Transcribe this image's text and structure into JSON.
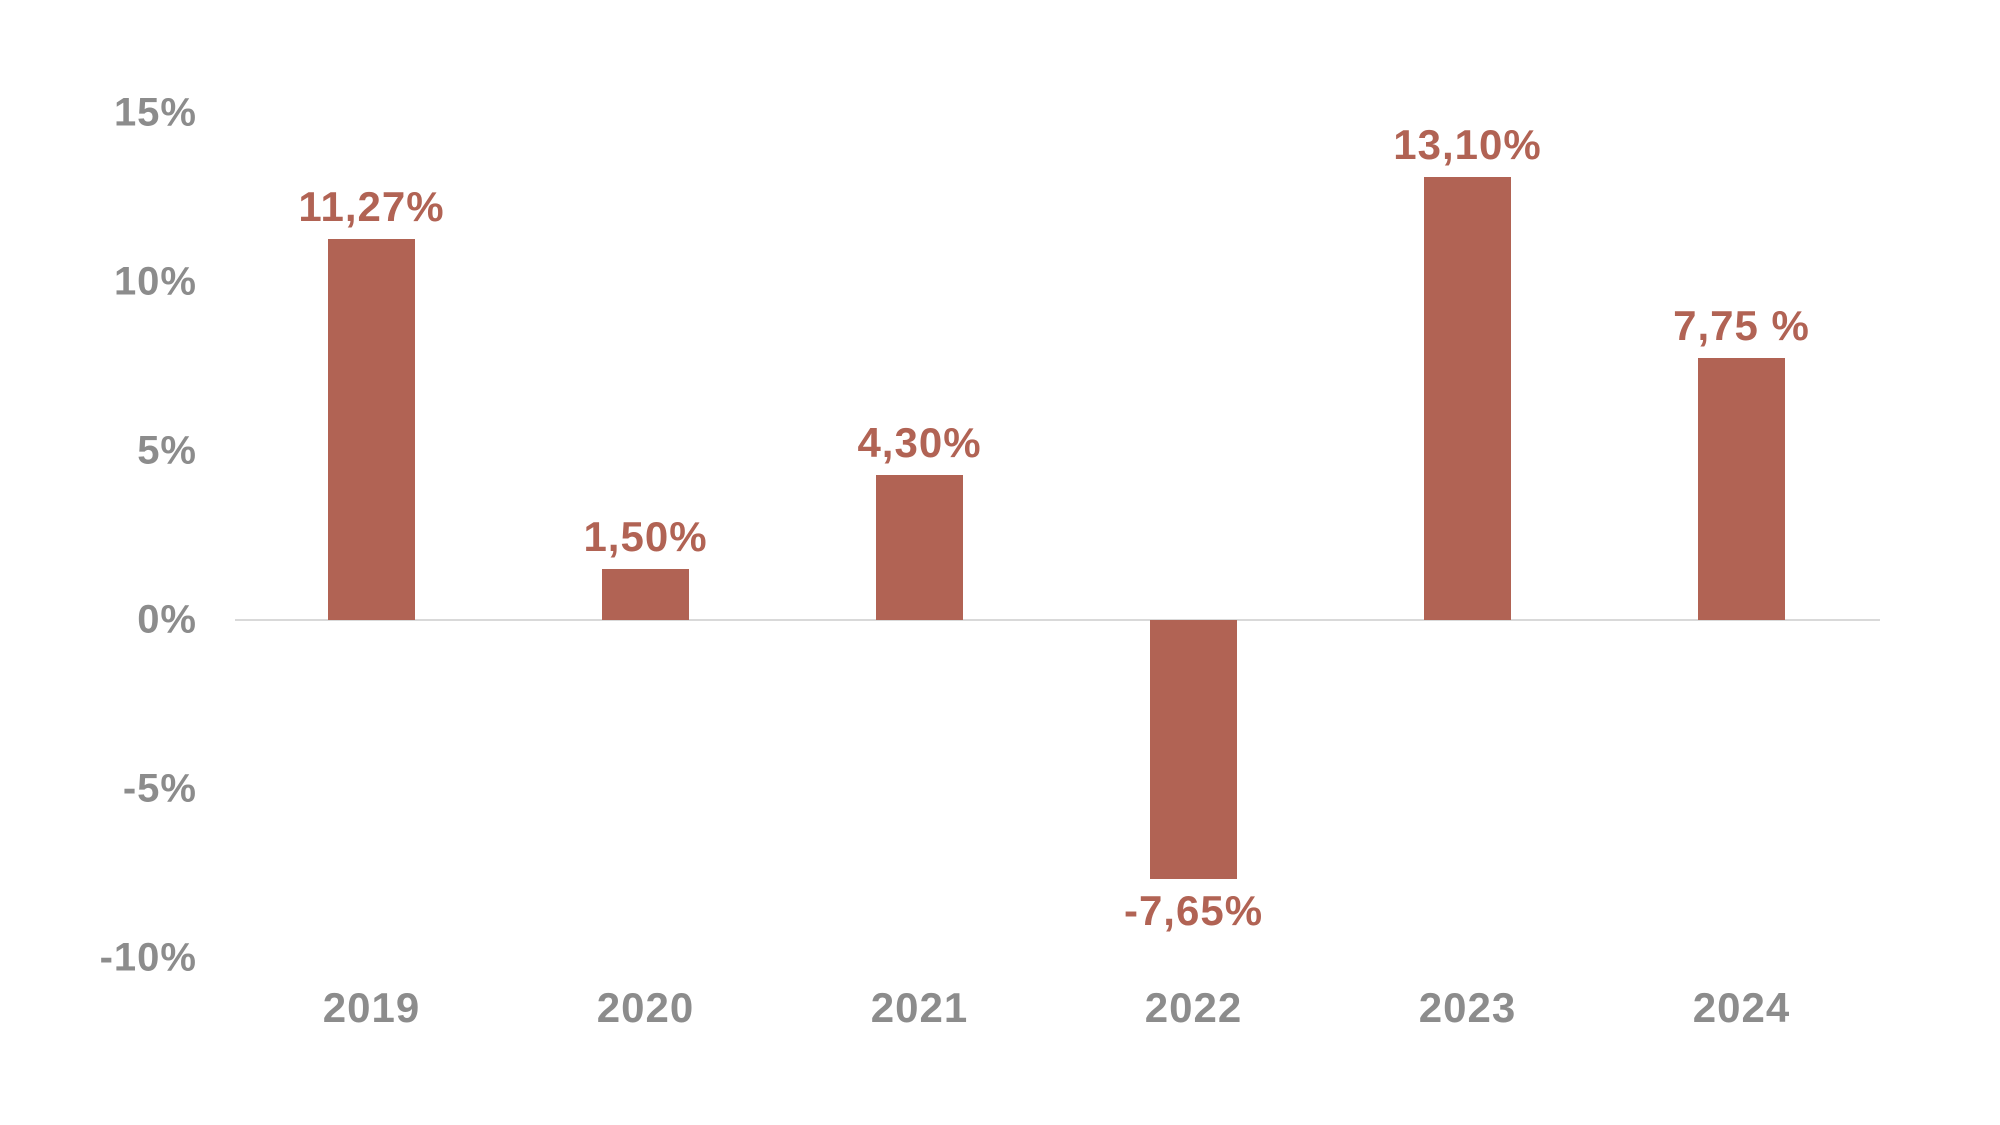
{
  "chart_data": {
    "type": "bar",
    "title": "",
    "xlabel": "",
    "ylabel": "",
    "categories": [
      "2019",
      "2020",
      "2021",
      "2022",
      "2023",
      "2024"
    ],
    "values": [
      11.27,
      1.5,
      4.3,
      -7.65,
      13.1,
      7.75
    ],
    "value_labels": [
      "11,27%",
      "1,50%",
      "4,30%",
      "-7,65%",
      "13,10%",
      "7,75 %"
    ],
    "y_tick_values": [
      15,
      10,
      5,
      0,
      -5,
      -10
    ],
    "y_tick_labels": [
      "15%",
      "10%",
      "5%",
      "0%",
      "-5%",
      "-10%"
    ],
    "ylim": [
      -10,
      15
    ],
    "grid": "zero-baseline-only",
    "legend_position": "none",
    "colors": {
      "bar": "#b16354",
      "value_label": "#b16354",
      "axis_text": "#8c8c8c",
      "zero_line": "#d9d9d9",
      "background": "#ffffff"
    }
  }
}
